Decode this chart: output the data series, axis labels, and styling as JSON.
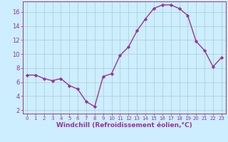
{
  "x": [
    0,
    1,
    2,
    3,
    4,
    5,
    6,
    7,
    8,
    9,
    10,
    11,
    12,
    13,
    14,
    15,
    16,
    17,
    18,
    19,
    20,
    21,
    22,
    23
  ],
  "y": [
    7.0,
    7.0,
    6.5,
    6.2,
    6.5,
    5.5,
    5.0,
    3.2,
    2.5,
    6.8,
    7.2,
    9.8,
    11.0,
    13.3,
    15.0,
    16.5,
    17.0,
    17.0,
    16.5,
    15.5,
    11.8,
    10.5,
    8.2,
    9.5
  ],
  "line_color": "#993399",
  "marker": "D",
  "marker_size": 2.2,
  "line_width": 1.0,
  "bg_color": "#cceeff",
  "grid_color": "#aacccc",
  "xlabel": "Windchill (Refroidissement éolien,°C)",
  "xlabel_fontsize": 6.5,
  "tick_color": "#993399",
  "ytick_fontsize": 6.0,
  "xtick_fontsize": 5.0,
  "ylim": [
    1.5,
    17.5
  ],
  "yticks": [
    2,
    4,
    6,
    8,
    10,
    12,
    14,
    16
  ],
  "xlim": [
    -0.5,
    23.5
  ],
  "xticks": [
    0,
    1,
    2,
    3,
    4,
    5,
    6,
    7,
    8,
    9,
    10,
    11,
    12,
    13,
    14,
    15,
    16,
    17,
    18,
    19,
    20,
    21,
    22,
    23
  ]
}
